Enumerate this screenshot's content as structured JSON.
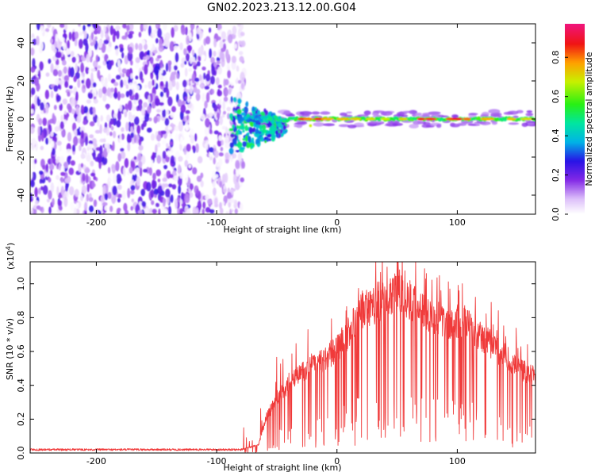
{
  "title": "GN02.2023.213.12.00.G04",
  "chart_data": [
    {
      "type": "heatmap",
      "xlabel": "Height of straight line (km)",
      "ylabel": "Frequency (Hz)",
      "xlim": [
        -255,
        165
      ],
      "ylim": [
        -50,
        50
      ],
      "x_ticks": [
        -200,
        -100,
        0,
        100
      ],
      "y_ticks": [
        -40,
        -20,
        0,
        20,
        40
      ],
      "colorbar": {
        "label": "Normalized spectral amplitude",
        "range": [
          0,
          1
        ],
        "ticks": [
          "0.0",
          "0.2",
          "0.4",
          "0.6",
          "0.8"
        ],
        "colormap": "rainbow (white, violet, blue, cyan, green, yellow, red, pink)"
      },
      "features": {
        "noise_region_x": [
          -255,
          -85
        ],
        "signal_line_frequency_hz": 0,
        "signal_start_x": -85
      },
      "grid": false
    },
    {
      "type": "line",
      "xlabel": "Height of straight line (km)",
      "ylabel": "SNR (10 * v/v)",
      "y_multiplier_label": "(x10",
      "y_multiplier_exponent": "4",
      "xlim": [
        -255,
        165
      ],
      "ylim": [
        0,
        1.13
      ],
      "x_ticks": [
        -200,
        -100,
        0,
        100
      ],
      "y_ticks": [
        "0.0",
        "0.2",
        "0.4",
        "0.6",
        "0.8",
        "1.0"
      ],
      "color": "#f03a3a",
      "grid": false,
      "envelope_x": [
        -255,
        -150,
        -80,
        -65,
        -60,
        -50,
        -40,
        -30,
        -20,
        -10,
        0,
        10,
        20,
        30,
        40,
        50,
        60,
        70,
        80,
        90,
        100,
        110,
        120,
        130,
        140,
        150,
        165
      ],
      "envelope_y": [
        0.02,
        0.02,
        0.02,
        0.05,
        0.2,
        0.35,
        0.42,
        0.5,
        0.55,
        0.58,
        0.65,
        0.75,
        0.88,
        0.92,
        0.97,
        1.02,
        0.95,
        0.9,
        0.86,
        0.8,
        0.82,
        0.78,
        0.72,
        0.66,
        0.6,
        0.53,
        0.47
      ]
    }
  ]
}
